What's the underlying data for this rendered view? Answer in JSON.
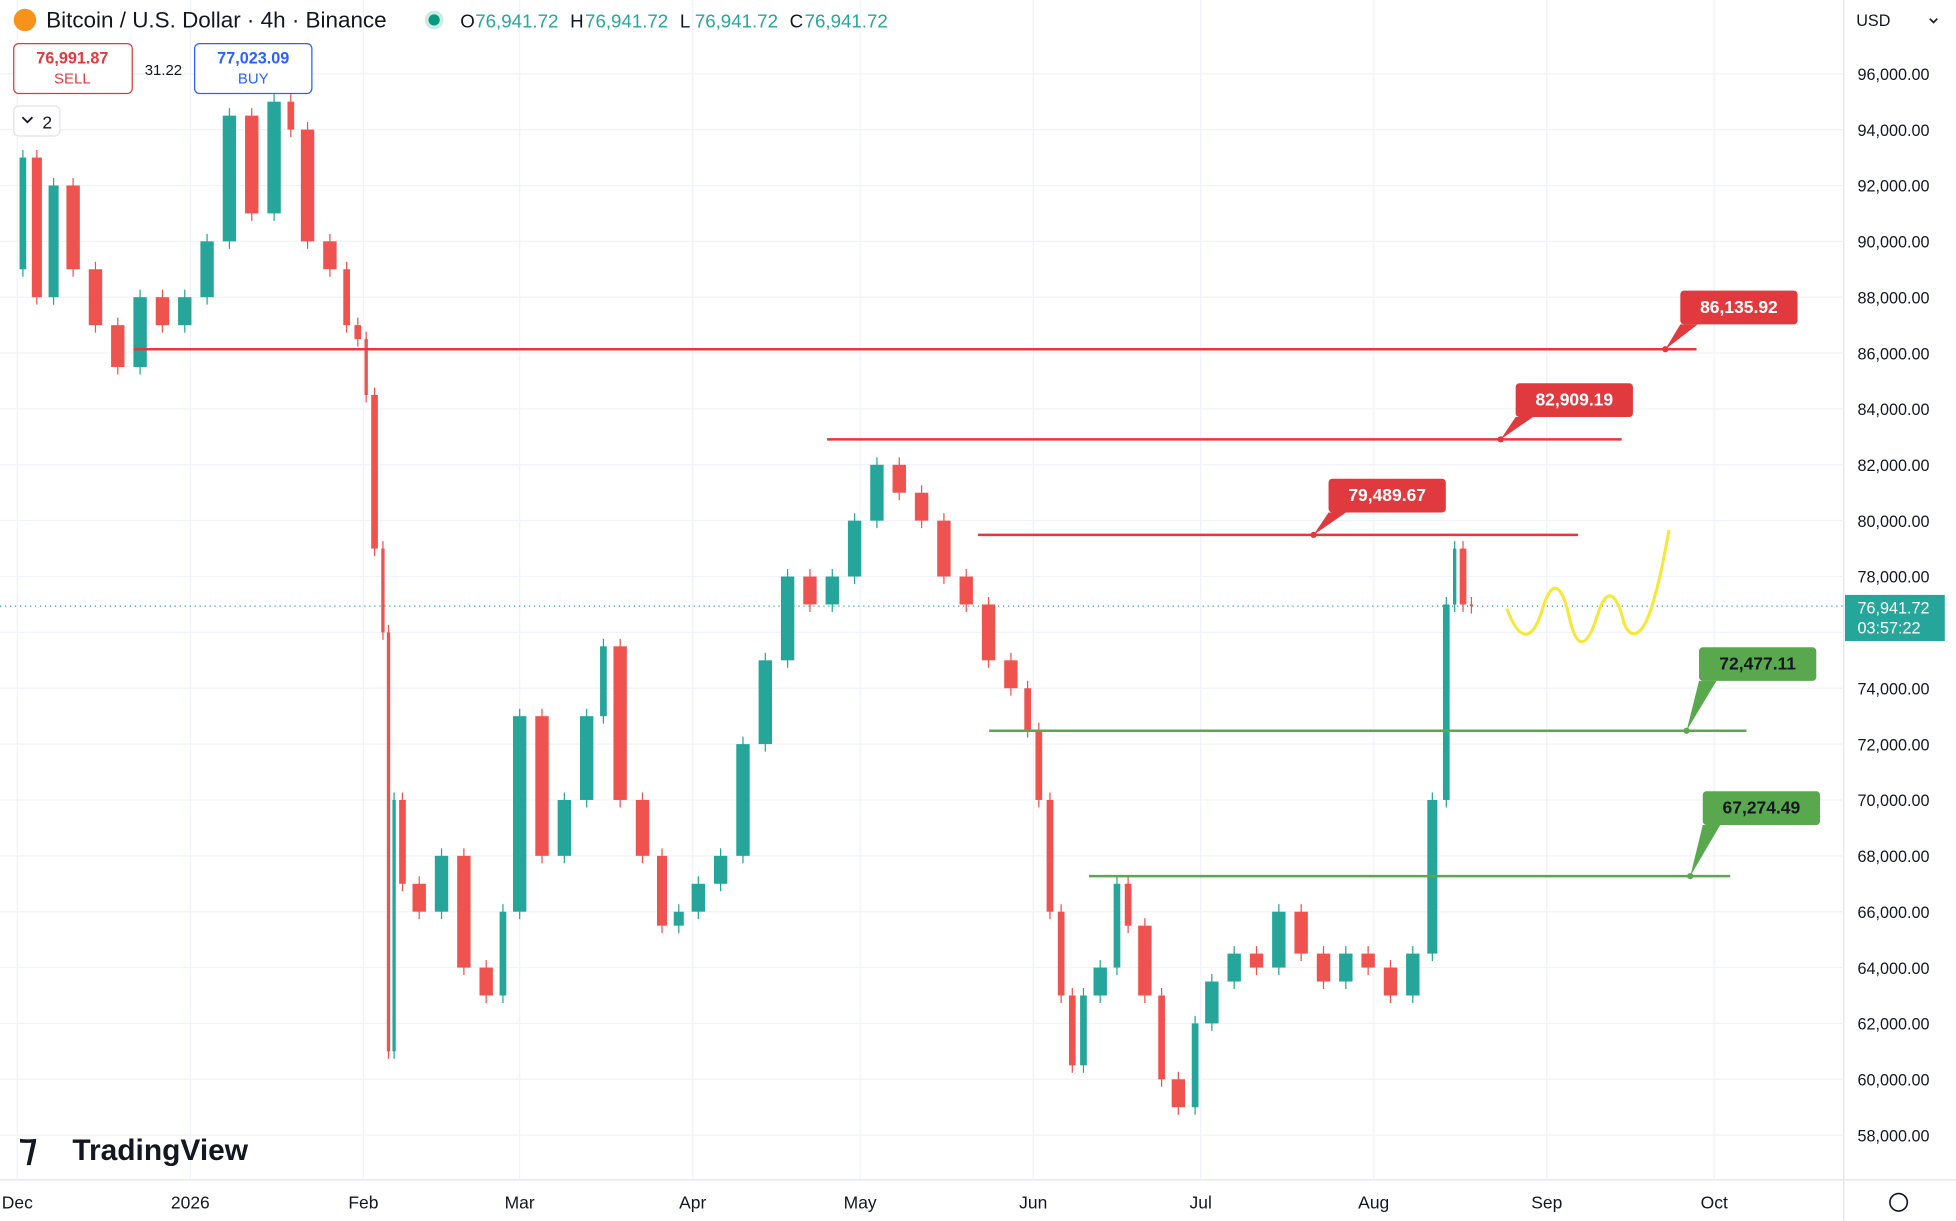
{
  "toolbar": {
    "symbol": "Bitcoin / U.S. Dollar · 4h · Binance",
    "ohlc": [
      {
        "key": "O",
        "value": "76,941.72"
      },
      {
        "key": "H",
        "value": "76,941.72"
      },
      {
        "key": "L",
        "value": "76,941.72"
      },
      {
        "key": "C",
        "value": "76,941.72"
      }
    ],
    "sell_price": "76,991.87",
    "sell": "SELL",
    "spread": "31.22",
    "buy_price": "77,023.09",
    "buy": "BUY",
    "indicators": "2",
    "currency": "USD",
    "logo": "TradingView",
    "last_price": "76,941.72",
    "countdown": "03:57:22"
  },
  "chart_data": {
    "type": "candlestick",
    "title": "Bitcoin / U.S. Dollar · 4h · Binance",
    "x": [
      0,
      2,
      5,
      8,
      12,
      16,
      20,
      24,
      28,
      32,
      36,
      40,
      44,
      48,
      50,
      54,
      58,
      60,
      62,
      63,
      65,
      66,
      67,
      68,
      70,
      74,
      78,
      82,
      86,
      88,
      92,
      96,
      100,
      104,
      106,
      110,
      114,
      117,
      120,
      124,
      128,
      132,
      136,
      140,
      144,
      148,
      152,
      156,
      160,
      164,
      168,
      172,
      176,
      180,
      182,
      184,
      186,
      188,
      190,
      192,
      196,
      198,
      200,
      204,
      206,
      210,
      212,
      216,
      220,
      224,
      228,
      232,
      236,
      240,
      244,
      248,
      252,
      255,
      257,
      258,
      260,
      261
    ],
    "series": [
      {
        "name": "BTCUSD",
        "up_color": "#26a69a",
        "down_color": "#ef5350",
        "values": [
          89000,
          93000,
          88000,
          92000,
          89000,
          87000,
          85500,
          88000,
          87000,
          88000,
          90000,
          94500,
          91000,
          95000,
          94000,
          90000,
          89000,
          87000,
          86500,
          84500,
          79000,
          76000,
          61000,
          70000,
          67000,
          66000,
          68000,
          64000,
          63000,
          66000,
          73000,
          68000,
          70000,
          73000,
          75500,
          70000,
          68000,
          65500,
          66000,
          67000,
          68000,
          72000,
          75000,
          78000,
          77000,
          78000,
          80000,
          82000,
          81000,
          80000,
          78000,
          77000,
          75000,
          74000,
          72500,
          70000,
          66000,
          63000,
          60500,
          63000,
          64000,
          67000,
          65500,
          63000,
          60000,
          59000,
          62000,
          63500,
          64500,
          64000,
          66000,
          64500,
          63500,
          64500,
          64000,
          63000,
          64500,
          70000,
          77000,
          79000,
          77000,
          76942
        ]
      }
    ],
    "levels": [
      {
        "value": 86135.92,
        "label": "86,135.92",
        "color": "#e03a3e"
      },
      {
        "value": 82909.19,
        "label": "82,909.19",
        "color": "#e03a3e"
      },
      {
        "value": 79489.67,
        "label": "79,489.67",
        "color": "#e03a3e"
      },
      {
        "value": 72477.11,
        "label": "72,477.11",
        "color": "#5aa84e"
      },
      {
        "value": 67274.49,
        "label": "67,274.49",
        "color": "#5aa84e"
      }
    ],
    "xlim": [
      -3.1,
      327.2
    ],
    "xticks": [
      {
        "value": 0,
        "label": "Dec"
      },
      {
        "value": 31,
        "label": "2026"
      },
      {
        "value": 62,
        "label": "Feb"
      },
      {
        "value": 90,
        "label": "Mar"
      },
      {
        "value": 121,
        "label": "Apr"
      },
      {
        "value": 151,
        "label": "May"
      },
      {
        "value": 182,
        "label": "Jun"
      },
      {
        "value": 212,
        "label": "Jul"
      },
      {
        "value": 243,
        "label": "Aug"
      },
      {
        "value": 274,
        "label": "Sep"
      },
      {
        "value": 304,
        "label": "Oct"
      }
    ],
    "ylim": [
      56400,
      98640
    ],
    "yticks": [
      {
        "value": 58000,
        "label": "58,000.00"
      },
      {
        "value": 60000,
        "label": "60,000.00"
      },
      {
        "value": 62000,
        "label": "62,000.00"
      },
      {
        "value": 64000,
        "label": "64,000.00"
      },
      {
        "value": 66000,
        "label": "66,000.00"
      },
      {
        "value": 68000,
        "label": "68,000.00"
      },
      {
        "value": 70000,
        "label": "70,000.00"
      },
      {
        "value": 72000,
        "label": "72,000.00"
      },
      {
        "value": 74000,
        "label": "74,000.00"
      },
      {
        "value": 76000,
        "label": "76,000.00"
      },
      {
        "value": 78000,
        "label": "78,000.00"
      },
      {
        "value": 80000,
        "label": "80,000.00"
      },
      {
        "value": 82000,
        "label": "82,000.00"
      },
      {
        "value": 84000,
        "label": "84,000.00"
      },
      {
        "value": 86000,
        "label": "86,000.00"
      },
      {
        "value": 88000,
        "label": "88,000.00"
      },
      {
        "value": 90000,
        "label": "90,000.00"
      },
      {
        "value": 92000,
        "label": "92,000.00"
      },
      {
        "value": 94000,
        "label": "94,000.00"
      },
      {
        "value": 96000,
        "label": "96,000.00"
      }
    ],
    "grid": true,
    "last_value": 76941.72
  }
}
